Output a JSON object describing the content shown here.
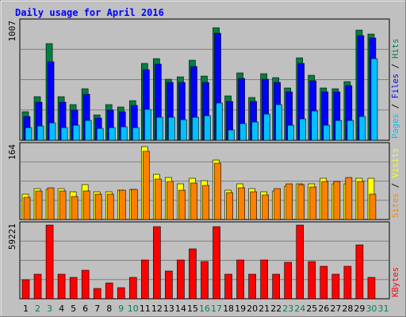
{
  "chart_data": {
    "type": "bar",
    "title": "Daily usage for April 2016",
    "days": [
      "1",
      "2",
      "3",
      "4",
      "5",
      "6",
      "7",
      "8",
      "9",
      "10",
      "11",
      "12",
      "13",
      "14",
      "15",
      "16",
      "17",
      "18",
      "19",
      "20",
      "21",
      "22",
      "23",
      "24",
      "25",
      "26",
      "27",
      "28",
      "29",
      "30",
      "31"
    ],
    "weekend_days": [
      "2",
      "3",
      "9",
      "10",
      "16",
      "17",
      "23",
      "24",
      "30",
      "31"
    ],
    "panels": [
      {
        "id": "top",
        "ymax_label": "1007",
        "ymax": 1007,
        "legend": [
          "Pages",
          "Files",
          "Hits"
        ],
        "series": [
          {
            "name": "Hits",
            "color": "#008040",
            "values": [
              246,
              370,
              827,
              374,
              306,
              440,
              217,
              306,
              287,
              336,
              657,
              694,
              520,
              540,
              683,
              548,
              963,
              381,
              574,
              368,
              566,
              536,
              446,
              703,
              555,
              446,
              440,
              500,
              938,
              909,
              0
            ]
          },
          {
            "name": "Files",
            "color": "#0000ff",
            "values": [
              200,
              325,
              666,
              323,
              255,
              395,
              186,
              255,
              245,
              298,
              602,
              646,
              490,
              496,
              628,
              493,
              913,
              332,
              525,
              330,
              518,
              491,
              411,
              657,
              509,
              411,
              411,
              467,
              892,
              871,
              0
            ]
          },
          {
            "name": "Pages",
            "color": "#00c0ff",
            "values": [
              109,
              123,
              147,
              106,
              127,
              172,
              98,
              110,
              117,
              106,
              264,
              197,
              193,
              174,
              199,
              208,
              319,
              88,
              145,
              155,
              226,
              305,
              127,
              182,
              252,
              131,
              168,
              168,
              201,
              693,
              0
            ]
          }
        ]
      },
      {
        "id": "middle",
        "ymax_label": "164",
        "ymax": 164,
        "legend": [
          "Sites",
          "Visits"
        ],
        "series": [
          {
            "name": "Visits",
            "color": "#ffff00",
            "values": [
              56,
              69,
              67,
              68,
              61,
              77,
              62,
              61,
              65,
              67,
              162,
              100,
              94,
              80,
              91,
              86,
              133,
              65,
              79,
              69,
              62,
              63,
              74,
              80,
              79,
              92,
              79,
              80,
              91,
              91,
              0
            ]
          },
          {
            "name": "Sites",
            "color": "#ff8000",
            "values": [
              50,
              63,
              71,
              63,
              52,
              64,
              56,
              56,
              65,
              67,
              152,
              90,
              84,
              65,
              81,
              75,
              126,
              60,
              70,
              62,
              55,
              68,
              79,
              77,
              72,
              85,
              85,
              94,
              85,
              56,
              0
            ]
          }
        ]
      },
      {
        "id": "bottom",
        "ymax_label": "59221",
        "ymax": 59221,
        "legend": [
          "KBytes"
        ],
        "series": [
          {
            "name": "KBytes",
            "color": "#ff0000",
            "values": [
              15000,
              20000,
              59221,
              20000,
              17000,
              23000,
              8000,
              13000,
              9000,
              17000,
              31000,
              58000,
              22000,
              31000,
              40000,
              30000,
              58000,
              20000,
              31000,
              20000,
              31000,
              20000,
              29000,
              59221,
              30000,
              26000,
              20000,
              26000,
              43000,
              17000,
              0
            ]
          }
        ]
      }
    ],
    "colors": {
      "title": "#0000ff",
      "weekday_label": "#000000",
      "weekend_label": "#00805c",
      "plot_bg": "#c0c0c0"
    }
  }
}
